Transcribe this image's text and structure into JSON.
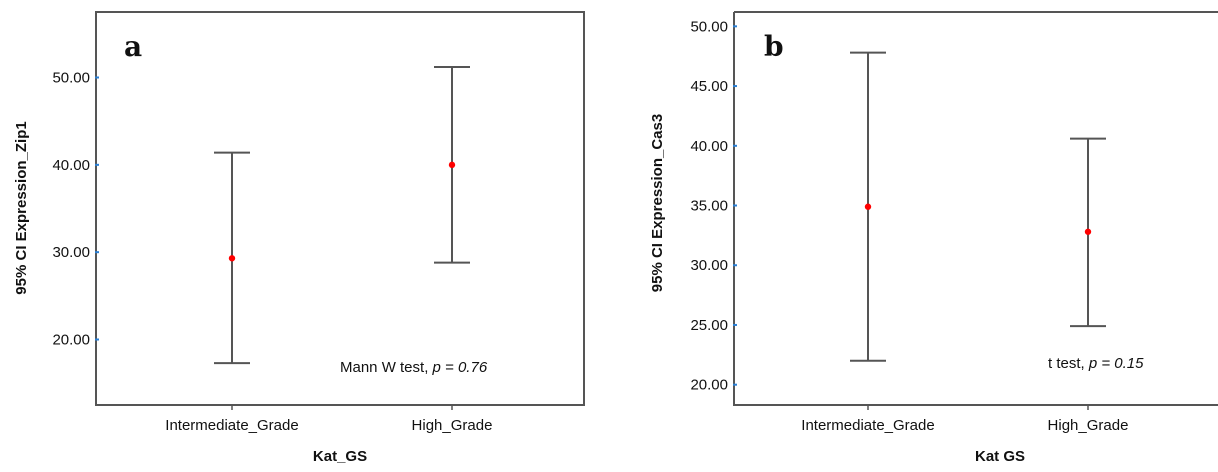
{
  "chart_data": [
    {
      "type": "errorbar",
      "panel_label": "a",
      "ylabel": "95% CI Expression_Zip1",
      "xlabel": "Kat_GS",
      "ylim": [
        12.5,
        57.5
      ],
      "yticks": [
        "20.00",
        "30.00",
        "40.00",
        "50.00"
      ],
      "categories": [
        "Intermediate_Grade",
        "High_Grade"
      ],
      "mean": [
        29.3,
        40.0
      ],
      "lower": [
        17.3,
        28.8
      ],
      "upper": [
        41.4,
        51.2
      ],
      "annotation": {
        "test": "Mann W test, ",
        "stat": "p = 0.76"
      },
      "colors": {
        "mean_marker": "#ff0000",
        "error_bar": "#555555",
        "frame": "#555555"
      }
    },
    {
      "type": "errorbar",
      "panel_label": "b",
      "ylabel": "95% CI Expression_Cas3",
      "xlabel": "Kat GS",
      "ylim": [
        18.3,
        51.2
      ],
      "yticks": [
        "20.00",
        "25.00",
        "30.00",
        "35.00",
        "40.00",
        "45.00",
        "50.00"
      ],
      "categories": [
        "Intermediate_Grade",
        "High_Grade"
      ],
      "mean": [
        34.9,
        32.8
      ],
      "lower": [
        22.0,
        24.9
      ],
      "upper": [
        47.8,
        40.6
      ],
      "annotation": {
        "test": "t test, ",
        "stat": "p = 0.15"
      },
      "colors": {
        "mean_marker": "#ff0000",
        "error_bar": "#555555",
        "frame": "#555555"
      }
    }
  ]
}
